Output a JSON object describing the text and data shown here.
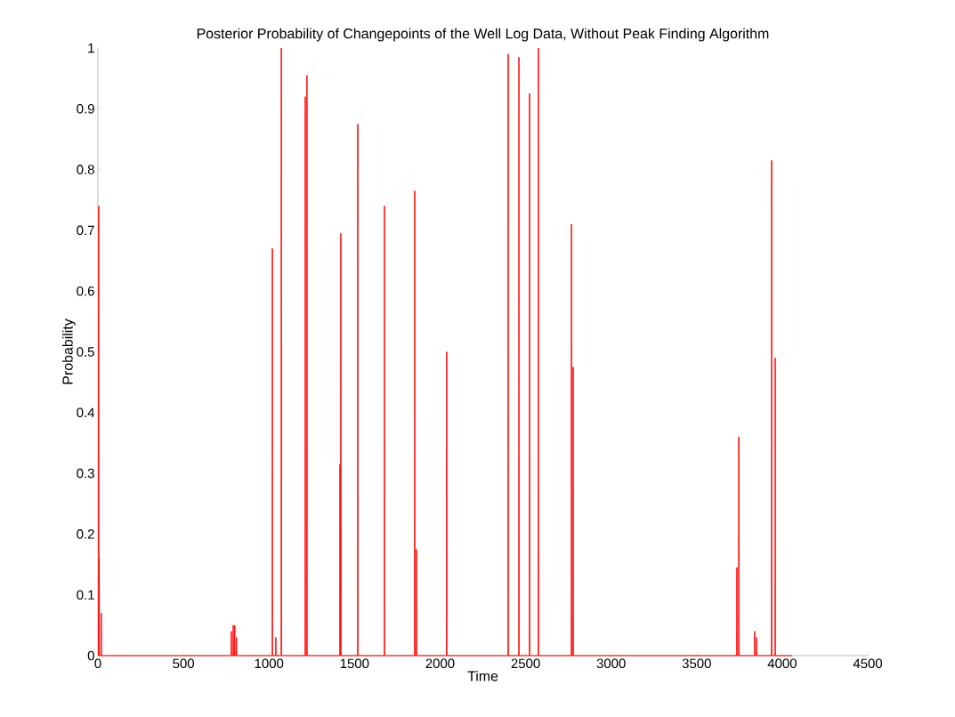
{
  "chart_data": {
    "type": "line",
    "title": "Posterior Probability of Changepoints of the Well Log Data, Without Peak Finding Algorithm",
    "xlabel": "Time",
    "ylabel": "Probability",
    "xlim": [
      0,
      4500
    ],
    "ylim": [
      0,
      1
    ],
    "xticks": [
      0,
      500,
      1000,
      1500,
      2000,
      2500,
      3000,
      3500,
      4000,
      4500
    ],
    "yticks": [
      0,
      0.1,
      0.2,
      0.3,
      0.4,
      0.5,
      0.6,
      0.7,
      0.8,
      0.9,
      1
    ],
    "series": [
      {
        "color": "#ff0000",
        "x": [
          0,
          4,
          5,
          6,
          7,
          8,
          9,
          19,
          20,
          21,
          779,
          780,
          781,
          790,
          791,
          792,
          799,
          800,
          801,
          809,
          810,
          811,
          1019,
          1020,
          1021,
          1039,
          1040,
          1041,
          1071,
          1072,
          1073,
          1211,
          1212,
          1213,
          1221,
          1222,
          1223,
          1414,
          1415,
          1416,
          1419,
          1420,
          1421,
          1518,
          1519,
          1520,
          1674,
          1675,
          1676,
          1851,
          1852,
          1853,
          1861,
          1862,
          1863,
          2038,
          2039,
          2040,
          2397,
          2398,
          2399,
          2460,
          2461,
          2462,
          2522,
          2523,
          2524,
          2574,
          2575,
          2576,
          2767,
          2768,
          2769,
          2777,
          2778,
          2779,
          3734,
          3735,
          3736,
          3745,
          3746,
          3747,
          3838,
          3839,
          3840,
          3849,
          3850,
          3851,
          3937,
          3938,
          3939,
          3958,
          3959,
          3960,
          4058
        ],
        "values": [
          0,
          0,
          0.74,
          0,
          0,
          0.16,
          0,
          0,
          0.07,
          0,
          0,
          0.04,
          0,
          0,
          0.05,
          0,
          0,
          0.05,
          0,
          0,
          0.03,
          0,
          0,
          0.67,
          0,
          0,
          0.03,
          0,
          0,
          1,
          0,
          0,
          0.92,
          0,
          0,
          0.955,
          0,
          0,
          0.315,
          0,
          0,
          0.695,
          0,
          0,
          0.875,
          0,
          0,
          0.74,
          0,
          0,
          0.765,
          0,
          0,
          0.175,
          0,
          0,
          0.5,
          0,
          0,
          0.99,
          0,
          0,
          0.985,
          0,
          0,
          0.925,
          0,
          0,
          1,
          0,
          0,
          0.71,
          0,
          0,
          0.475,
          0,
          0,
          0.145,
          0,
          0,
          0.36,
          0,
          0,
          0.04,
          0,
          0,
          0.03,
          0,
          0,
          0.815,
          0,
          0,
          0.49,
          0,
          0
        ]
      }
    ]
  }
}
